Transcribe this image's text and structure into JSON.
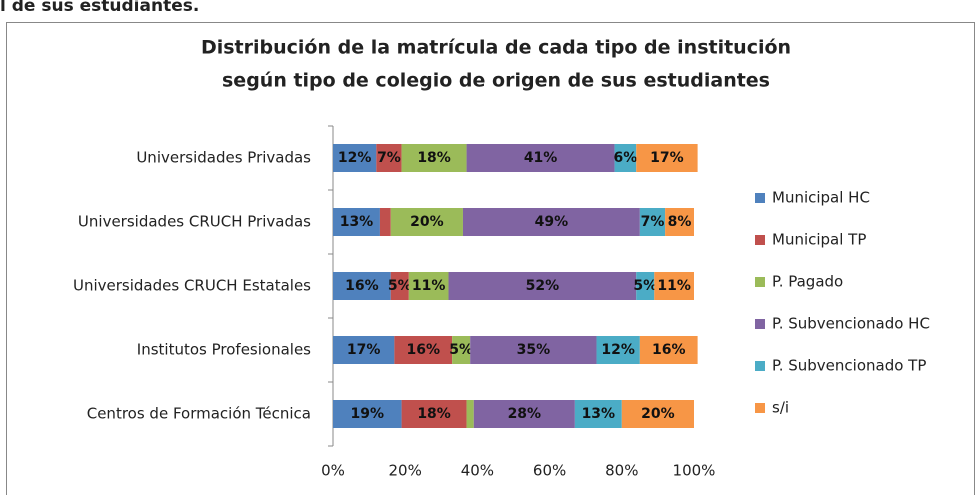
{
  "page_fragment": "l de sus estudiantes.",
  "chart_data": {
    "type": "stacked_bar_horizontal",
    "title": [
      "Distribución de la matrícula de cada tipo de institución",
      "según tipo de colegio de origen de sus estudiantes"
    ],
    "categories": [
      "Universidades Privadas",
      "Universidades CRUCH Privadas",
      "Universidades CRUCH Estatales",
      "Institutos Profesionales",
      "Centros de Formación Técnica"
    ],
    "series": [
      {
        "name": "Municipal HC",
        "color": "#4f81bd",
        "values": [
          12,
          13,
          16,
          17,
          19
        ],
        "value_labels": [
          "12%",
          "13%",
          "16%",
          "17%",
          "19%"
        ]
      },
      {
        "name": "Municipal TP",
        "color": "#c0504d",
        "values": [
          7,
          3,
          5,
          16,
          18
        ],
        "value_labels": [
          "7%",
          null,
          "5%",
          "16%",
          "18%"
        ]
      },
      {
        "name": "P. Pagado",
        "color": "#9bbb59",
        "values": [
          18,
          20,
          11,
          5,
          2
        ],
        "value_labels": [
          "18%",
          "20%",
          "11%",
          "5%",
          null
        ]
      },
      {
        "name": "P. Subvencionado HC",
        "color": "#8064a2",
        "values": [
          41,
          49,
          52,
          35,
          28
        ],
        "value_labels": [
          "41%",
          "49%",
          "52%",
          "35%",
          "28%"
        ]
      },
      {
        "name": "P. Subvencionado TP",
        "color": "#4bacc6",
        "values": [
          6,
          7,
          5,
          12,
          13
        ],
        "value_labels": [
          "6%",
          "7%",
          "5%",
          "12%",
          "13%"
        ]
      },
      {
        "name": "s/i",
        "color": "#f79646",
        "values": [
          17,
          8,
          11,
          16,
          20
        ],
        "value_labels": [
          "17%",
          "8%",
          "11%",
          "16%",
          "20%"
        ]
      }
    ],
    "xlim": [
      0,
      100
    ],
    "xticks": [
      {
        "value": 0,
        "label": "0%"
      },
      {
        "value": 20,
        "label": "20%"
      },
      {
        "value": 40,
        "label": "40%"
      },
      {
        "value": 60,
        "label": "60%"
      },
      {
        "value": 80,
        "label": "80%"
      },
      {
        "value": 100,
        "label": "100%"
      }
    ],
    "legend": "right"
  }
}
